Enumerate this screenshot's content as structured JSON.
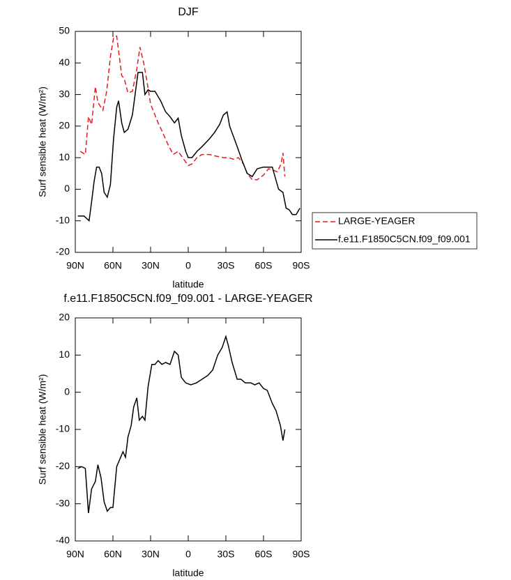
{
  "chart_data": [
    {
      "type": "line",
      "title": "DJF",
      "xlabel": "latitude",
      "ylabel": "Surf sensible heat (W/m²)",
      "xlim": [
        90,
        -90
      ],
      "xticks": [
        {
          "value": 90,
          "label": "90N"
        },
        {
          "value": 60,
          "label": "60N"
        },
        {
          "value": 30,
          "label": "30N"
        },
        0,
        {
          "value": -30,
          "label": "30S"
        },
        {
          "value": -60,
          "label": "60S"
        },
        {
          "value": -90,
          "label": "90S"
        }
      ],
      "ylim": [
        -20,
        50
      ],
      "yticks": [
        -20,
        -10,
        0,
        10,
        20,
        30,
        40,
        50
      ],
      "legend": "right",
      "series": [
        {
          "name": "LARGE-YEAGER",
          "color": "#e41a1c",
          "style": "dashed",
          "x": [
            86,
            82,
            79.5,
            77,
            74,
            72,
            68,
            65,
            62,
            59.5,
            57,
            53,
            51,
            48,
            44.5,
            41,
            38.5,
            35.5,
            33,
            30,
            26.5,
            24,
            21,
            16.5,
            12,
            8,
            4.5,
            0,
            -3,
            -7,
            -11,
            -17,
            -22,
            -28,
            -32,
            -36,
            -40,
            -44,
            -47,
            -51,
            -55,
            -60,
            -64,
            -68,
            -71,
            -74,
            -75.5,
            -77
          ],
          "values": [
            12,
            11,
            23,
            20.5,
            32.5,
            27.5,
            25,
            31,
            42,
            48,
            48.5,
            36,
            35,
            30.5,
            31,
            38,
            45,
            40,
            34.5,
            27,
            23.5,
            21,
            18.5,
            14.5,
            11,
            12,
            10,
            7.5,
            8,
            10,
            11,
            11,
            10.5,
            10,
            10,
            9.5,
            10,
            8,
            5,
            3,
            3,
            4.5,
            6.5,
            6,
            5.5,
            8,
            11.5,
            4
          ]
        },
        {
          "name": "f.e11.F1850C5CN.f09_f09.001",
          "color": "#000000",
          "style": "solid",
          "x": [
            88,
            83,
            79,
            77,
            75,
            73,
            71,
            69,
            67,
            64.5,
            62,
            59.5,
            57,
            55.5,
            53,
            51,
            48,
            44.5,
            42,
            40,
            36.5,
            34.5,
            32,
            30,
            26.5,
            22,
            18,
            14.5,
            11,
            8,
            5.5,
            2,
            0,
            -3,
            -7,
            -11,
            -17,
            -21,
            -25,
            -28,
            -31,
            -33,
            -39,
            -43,
            -47,
            -51,
            -55,
            -60,
            -64,
            -67,
            -69.5,
            -72,
            -75.5,
            -78,
            -80.5,
            -83,
            -86,
            -89
          ],
          "values": [
            -8.5,
            -8.5,
            -10,
            -4,
            2.5,
            7,
            7,
            5,
            -1,
            -2.5,
            1.5,
            16,
            26,
            28,
            21,
            18,
            19,
            23.5,
            31,
            37,
            37,
            30,
            31.5,
            31,
            31,
            28,
            24.5,
            23,
            21,
            22.5,
            17,
            12,
            10,
            10,
            12,
            13.5,
            16,
            18,
            20.5,
            23.5,
            24.5,
            20,
            13.5,
            9,
            5,
            4,
            6.5,
            7,
            7,
            7,
            3.5,
            0,
            -1,
            -6,
            -6.5,
            -8,
            -8,
            -6
          ]
        }
      ]
    },
    {
      "type": "line",
      "title": "f.e11.F1850C5CN.f09_f09.001 - LARGE-YEAGER",
      "xlabel": "latitude",
      "ylabel": "Surf sensible heat (W/m²)",
      "xlim": [
        90,
        -90
      ],
      "xticks": [
        {
          "value": 90,
          "label": "90N"
        },
        {
          "value": 60,
          "label": "60N"
        },
        {
          "value": 30,
          "label": "30N"
        },
        0,
        {
          "value": -30,
          "label": "30S"
        },
        {
          "value": -60,
          "label": "60S"
        },
        {
          "value": -90,
          "label": "90S"
        }
      ],
      "ylim": [
        -40,
        20
      ],
      "yticks": [
        -40,
        -30,
        -20,
        -10,
        0,
        10,
        20
      ],
      "series": [
        {
          "color": "#000000",
          "style": "solid",
          "x": [
            88,
            85,
            82,
            79.5,
            77,
            74,
            72,
            69.5,
            67,
            64.5,
            62,
            60,
            57,
            54.5,
            52,
            50,
            48,
            45.5,
            43.5,
            41,
            39,
            36.5,
            34.5,
            32,
            29,
            26.5,
            24,
            21,
            18,
            14.5,
            11,
            8,
            5.5,
            2,
            -2,
            -6.5,
            -11,
            -15.5,
            -19.5,
            -23.5,
            -27,
            -30,
            -32,
            -35,
            -39,
            -42,
            -45.5,
            -50,
            -53,
            -56.5,
            -60,
            -63,
            -67,
            -70,
            -73.5,
            -75.5,
            -77
          ],
          "values": [
            -20.5,
            -20,
            -20.5,
            -32.5,
            -26,
            -24,
            -19.5,
            -23,
            -29.5,
            -32,
            -31,
            -31,
            -20,
            -18,
            -16,
            -17.5,
            -12,
            -9,
            -4,
            -1.5,
            -7.5,
            -6.5,
            -7.5,
            1.5,
            7.5,
            7.5,
            8.5,
            7.5,
            8,
            7.5,
            11,
            10,
            4,
            2.5,
            2,
            2.5,
            3.5,
            4.5,
            6,
            10,
            12,
            15,
            12.5,
            8,
            3.5,
            3.5,
            2.5,
            2.5,
            2,
            2.5,
            1,
            0.5,
            -3,
            -5,
            -9,
            -13,
            -10
          ]
        }
      ]
    }
  ]
}
